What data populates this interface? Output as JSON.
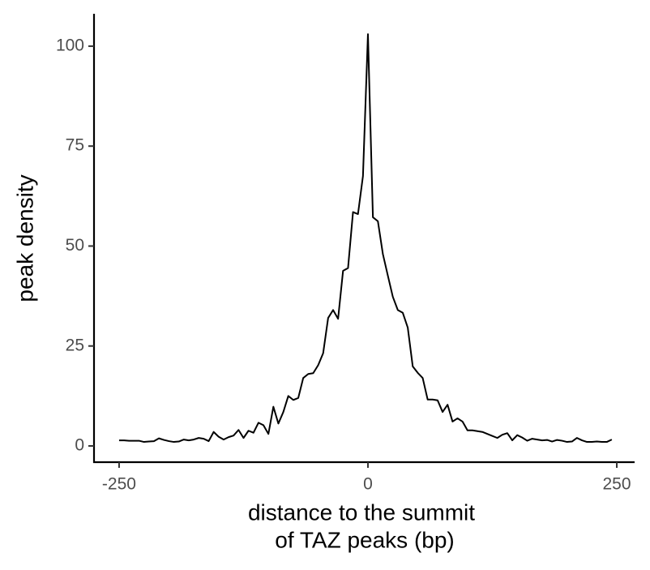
{
  "chart_data": {
    "type": "line",
    "xlabel": [
      "distance to the summit",
      "of TAZ peaks (bp)"
    ],
    "ylabel": "peak density",
    "x": [
      -250,
      -245,
      -240,
      -235,
      -230,
      -225,
      -220,
      -215,
      -210,
      -205,
      -200,
      -195,
      -190,
      -185,
      -180,
      -175,
      -170,
      -165,
      -160,
      -155,
      -150,
      -145,
      -140,
      -135,
      -130,
      -125,
      -120,
      -115,
      -110,
      -105,
      -100,
      -95,
      -90,
      -85,
      -80,
      -75,
      -70,
      -65,
      -60,
      -55,
      -50,
      -45,
      -40,
      -35,
      -30,
      -25,
      -20,
      -15,
      -10,
      -5,
      0,
      5,
      10,
      15,
      20,
      25,
      30,
      35,
      40,
      45,
      50,
      55,
      60,
      65,
      70,
      75,
      80,
      85,
      90,
      95,
      100,
      105,
      110,
      115,
      120,
      125,
      130,
      135,
      140,
      145,
      150,
      155,
      160,
      165,
      170,
      175,
      180,
      185,
      190,
      195,
      200,
      205,
      210,
      215,
      220,
      225,
      230,
      235,
      240,
      245
    ],
    "series": [
      {
        "color": "#000000",
        "values": [
          1.4,
          1.4,
          1.3,
          1.3,
          1.3,
          1.0,
          1.1,
          1.2,
          1.9,
          1.5,
          1.2,
          1.0,
          1.1,
          1.6,
          1.4,
          1.6,
          2.0,
          1.8,
          1.2,
          3.5,
          2.3,
          1.6,
          2.2,
          2.6,
          4.0,
          2.0,
          3.8,
          3.3,
          5.8,
          5.2,
          3.0,
          9.8,
          5.6,
          8.5,
          12.5,
          11.5,
          12.0,
          17.0,
          18.0,
          18.2,
          20.2,
          23.2,
          32.0,
          34.0,
          31.8,
          43.8,
          44.5,
          58.5,
          58.0,
          67.5,
          103,
          57.2,
          56.2,
          48,
          42.6,
          37.3,
          34,
          33.3,
          29.6,
          19.9,
          18.3,
          17,
          11.6,
          11.6,
          11.4,
          8.5,
          10.3,
          6.1,
          6.9,
          6.1,
          3.9,
          3.9,
          3.7,
          3.5,
          3.0,
          2.5,
          2.0,
          2.8,
          3.2,
          1.4,
          2.7,
          2.1,
          1.3,
          1.8,
          1.6,
          1.4,
          1.5,
          1.1,
          1.5,
          1.3,
          1.0,
          1.1,
          2.0,
          1.4,
          1.0,
          1.0,
          1.1,
          1.0,
          1.0,
          1.6
        ]
      }
    ],
    "xlim": [
      -275.2,
      267.9
    ],
    "xticks": [
      -250,
      0,
      250
    ],
    "ylim": [
      -4.06,
      108.1
    ],
    "yticks": [
      0,
      25,
      50,
      75,
      100
    ]
  }
}
